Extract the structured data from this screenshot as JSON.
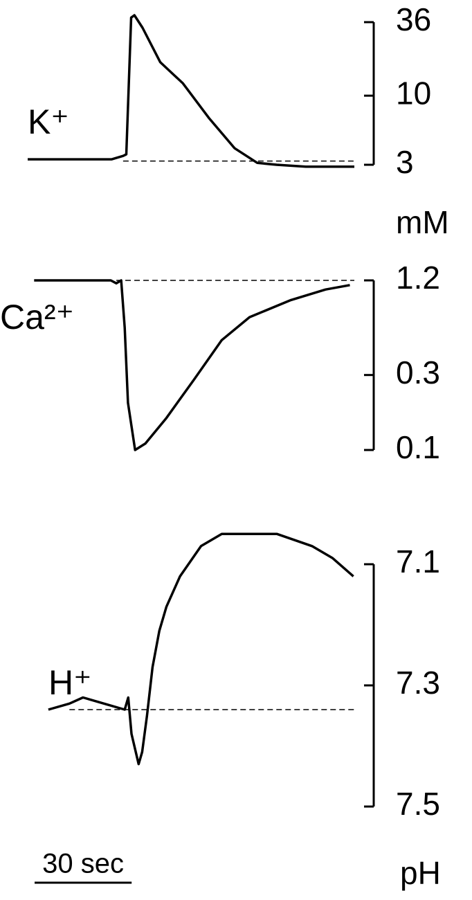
{
  "chart_data": [
    {
      "type": "line",
      "label": "K⁺",
      "unit": "mM",
      "log_scale": true,
      "color": "#000000",
      "x": [
        0,
        26,
        29.5,
        30.5,
        32,
        33,
        35.5,
        41,
        48,
        56,
        64,
        71,
        77,
        86,
        101
      ],
      "values": [
        3.3,
        3.3,
        3.5,
        3.6,
        39,
        40.6,
        32.7,
        17.9,
        12.4,
        6.8,
        4.0,
        3.1,
        3.0,
        2.9,
        2.9
      ],
      "baseline": 3.2,
      "xlim": [
        0,
        101
      ],
      "ylim": [
        3,
        36
      ],
      "yticks": [
        36,
        10,
        3
      ]
    },
    {
      "type": "line",
      "label": "Ca²⁺",
      "log_scale": true,
      "color": "#000000",
      "x": [
        2,
        25.7,
        27.4,
        28.9,
        30,
        31,
        33.2,
        36.4,
        42.9,
        51.4,
        60,
        68.6,
        81.4,
        92.1,
        99.6
      ],
      "values": [
        1.2,
        1.2,
        1.15,
        1.2,
        0.6,
        0.2,
        0.1,
        0.11,
        0.16,
        0.28,
        0.5,
        0.7,
        0.9,
        1.05,
        1.12
      ],
      "baseline": 1.2,
      "xlim": [
        0,
        101
      ],
      "ylim": [
        0.1,
        1.2
      ],
      "yticks": [
        1.2,
        0.3,
        0.1
      ]
    },
    {
      "type": "line",
      "label": "H⁺",
      "unit": "pH",
      "log_scale": false,
      "color": "#000000",
      "x": [
        6.4,
        12.9,
        17.1,
        30,
        31.1,
        32.1,
        34.3,
        35.4,
        36.9,
        38.6,
        40.7,
        42.9,
        47.1,
        53.6,
        60,
        66.4,
        77.1,
        87.9,
        94.3,
        100.7
      ],
      "values": [
        7.34,
        7.33,
        7.32,
        7.34,
        7.32,
        7.38,
        7.43,
        7.41,
        7.35,
        7.27,
        7.21,
        7.17,
        7.12,
        7.07,
        7.05,
        7.05,
        7.05,
        7.07,
        7.09,
        7.12
      ],
      "baseline": 7.34,
      "xlim": [
        0,
        101
      ],
      "ylim": [
        7.5,
        7.1
      ],
      "yticks": [
        7.1,
        7.3,
        7.5
      ],
      "scale_bar": {
        "value": 30,
        "label": "30 sec"
      }
    }
  ]
}
